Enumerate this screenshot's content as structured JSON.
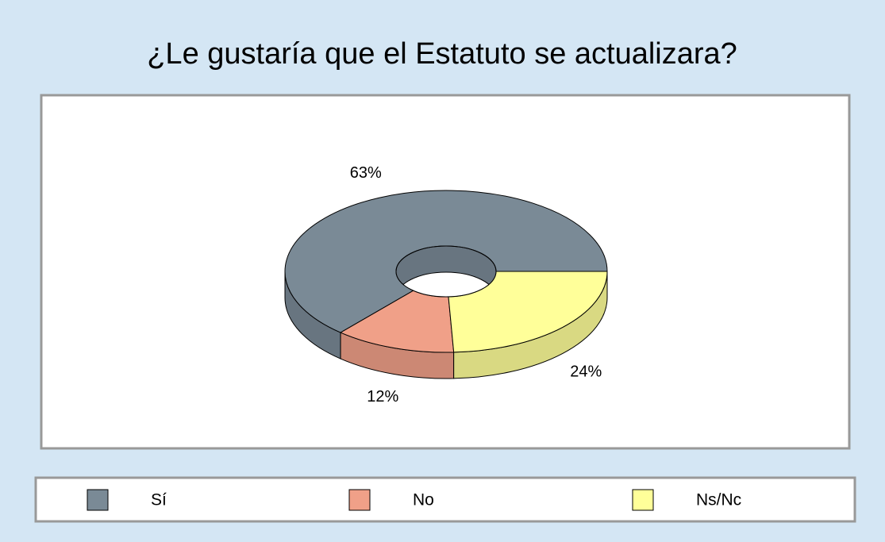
{
  "chart_data": {
    "type": "pie",
    "title": "¿Le gustaría que el Estatuto se actualizara?",
    "categories": [
      "Sí",
      "No",
      "Ns/Nc"
    ],
    "values": [
      63,
      12,
      24
    ],
    "value_labels": [
      "63%",
      "12%",
      "24%"
    ],
    "colors": [
      "#7a8a96",
      "#f0a088",
      "#ffff99"
    ],
    "legend": "bottom"
  }
}
